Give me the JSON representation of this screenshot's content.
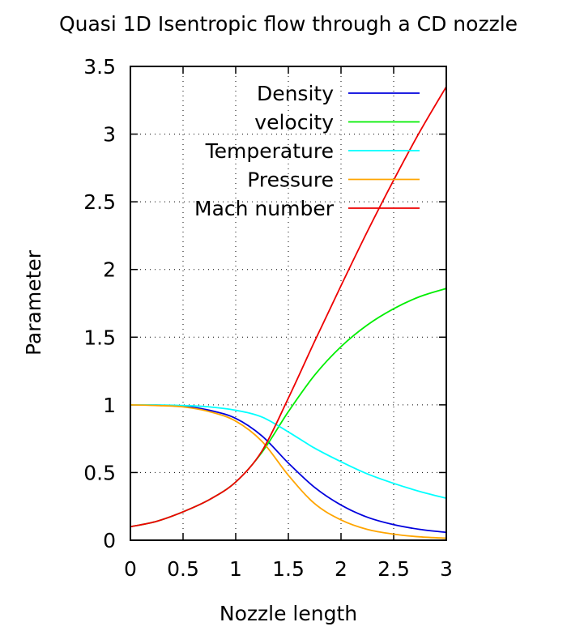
{
  "chart_data": {
    "type": "line",
    "title": "Quasi 1D Isentropic flow through a CD nozzle",
    "xlabel": "Nozzle length",
    "ylabel": "Parameter",
    "xlim": [
      0,
      3
    ],
    "ylim": [
      0,
      3.5
    ],
    "xticks": [
      0,
      0.5,
      1,
      1.5,
      2,
      2.5,
      3
    ],
    "xtick_labels": [
      "0",
      "0.5",
      "1",
      "1.5",
      "2",
      "2.5",
      "3"
    ],
    "yticks": [
      0,
      0.5,
      1,
      1.5,
      2,
      2.5,
      3,
      3.5
    ],
    "ytick_labels": [
      "0",
      "0.5",
      "1",
      "1.5",
      "2",
      "2.5",
      "3",
      "3.5"
    ],
    "grid": true,
    "legend_position": "top-right",
    "x": [
      0,
      0.25,
      0.5,
      0.75,
      1.0,
      1.25,
      1.5,
      1.75,
      2.0,
      2.25,
      2.5,
      2.75,
      3.0
    ],
    "series": [
      {
        "name": "Density",
        "color": "#0000dd",
        "values": [
          1.0,
          0.998,
          0.99,
          0.96,
          0.9,
          0.77,
          0.57,
          0.39,
          0.26,
          0.17,
          0.115,
          0.08,
          0.058
        ]
      },
      {
        "name": "velocity",
        "color": "#00ee00",
        "values": [
          0.1,
          0.14,
          0.21,
          0.3,
          0.43,
          0.65,
          0.95,
          1.22,
          1.43,
          1.59,
          1.71,
          1.8,
          1.86
        ]
      },
      {
        "name": "Temperature",
        "color": "#00ffff",
        "values": [
          1.0,
          0.999,
          0.995,
          0.985,
          0.96,
          0.91,
          0.8,
          0.68,
          0.58,
          0.49,
          0.42,
          0.36,
          0.31
        ]
      },
      {
        "name": "Pressure",
        "color": "#ffa500",
        "values": [
          1.0,
          0.995,
          0.985,
          0.95,
          0.88,
          0.73,
          0.48,
          0.27,
          0.15,
          0.08,
          0.045,
          0.025,
          0.015
        ]
      },
      {
        "name": "Mach number",
        "color": "#ee0000",
        "values": [
          0.1,
          0.14,
          0.21,
          0.3,
          0.43,
          0.66,
          1.05,
          1.47,
          1.88,
          2.28,
          2.66,
          3.02,
          3.35
        ]
      }
    ]
  }
}
